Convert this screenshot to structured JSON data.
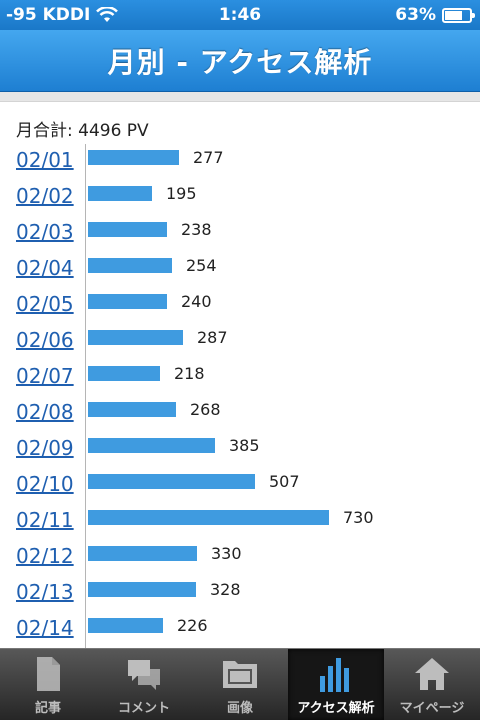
{
  "status": {
    "carrier": "-95 KDDI",
    "time": "1:46",
    "battery": "63%"
  },
  "header": {
    "title": "月別 - アクセス解析"
  },
  "summary": {
    "total": "月合計: 4496 PV"
  },
  "chart_data": {
    "type": "bar",
    "orientation": "horizontal",
    "categories": [
      "02/01",
      "02/02",
      "02/03",
      "02/04",
      "02/05",
      "02/06",
      "02/07",
      "02/08",
      "02/09",
      "02/10",
      "02/11",
      "02/12",
      "02/13",
      "02/14"
    ],
    "values": [
      277,
      195,
      238,
      254,
      240,
      287,
      218,
      268,
      385,
      507,
      730,
      330,
      328,
      226
    ],
    "color": "#3f9be0"
  },
  "tabs": [
    {
      "label": "記事",
      "icon": "document-icon",
      "active": false
    },
    {
      "label": "コメント",
      "icon": "comment-icon",
      "active": false
    },
    {
      "label": "画像",
      "icon": "image-folder-icon",
      "active": false
    },
    {
      "label": "アクセス解析",
      "icon": "bar-chart-icon",
      "active": true
    },
    {
      "label": "マイページ",
      "icon": "home-icon",
      "active": false
    }
  ]
}
